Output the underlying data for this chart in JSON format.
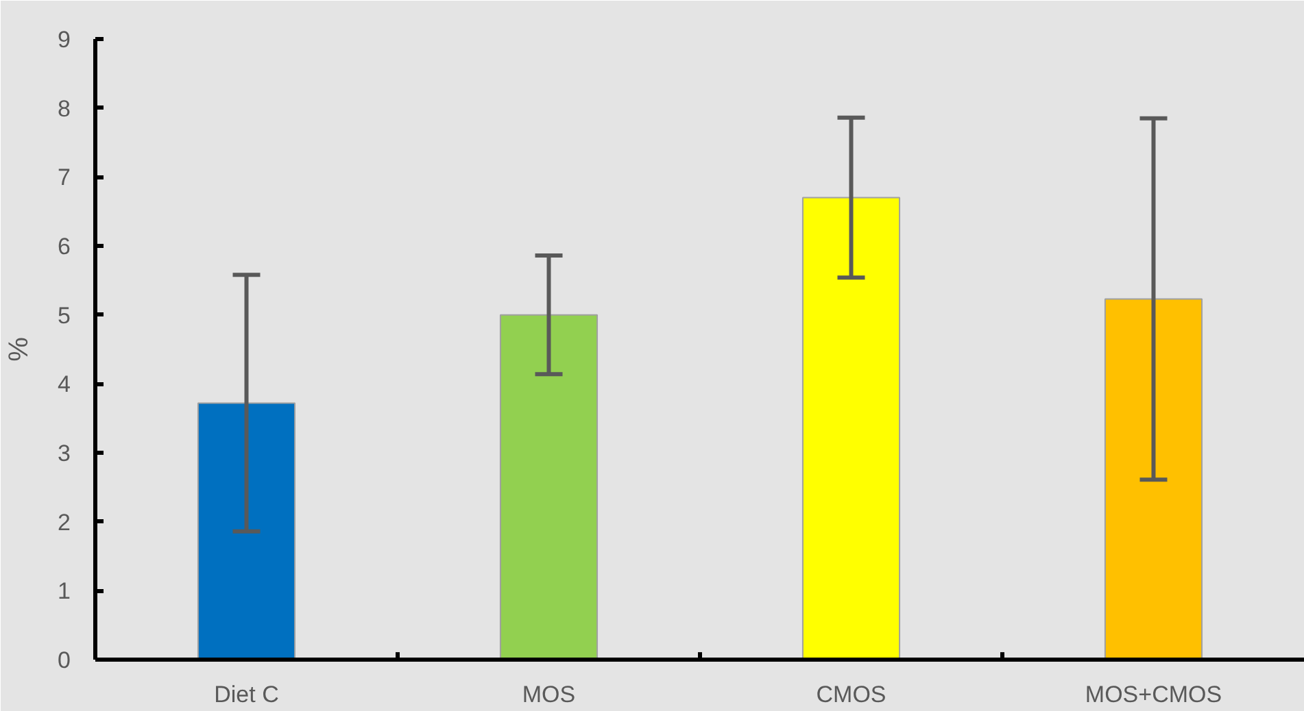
{
  "chart_data": {
    "type": "bar",
    "ylabel": "%",
    "categories": [
      "Diet C",
      "MOS",
      "CMOS",
      "MOS+CMOS"
    ],
    "values": [
      3.72,
      5.0,
      6.7,
      5.23
    ],
    "colors": [
      "#0070c0",
      "#92d050",
      "#ffff00",
      "#ffc000"
    ],
    "errors": [
      1.86,
      0.86,
      1.16,
      2.62
    ],
    "ylim": [
      0,
      9
    ],
    "yticks": [
      0,
      1,
      2,
      3,
      4,
      5,
      6,
      7,
      8,
      9
    ]
  }
}
